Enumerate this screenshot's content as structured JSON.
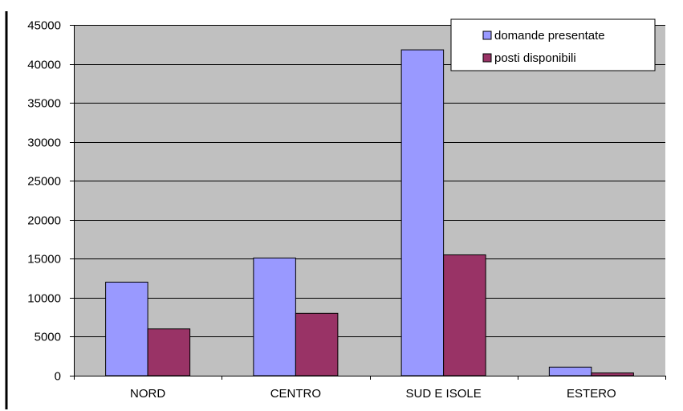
{
  "chart_data": {
    "type": "bar",
    "categories": [
      "NORD",
      "CENTRO",
      "SUD E ISOLE",
      "ESTERO"
    ],
    "series": [
      {
        "name": "domande presentate",
        "values": [
          12000,
          15100,
          41800,
          1100
        ],
        "color": "#9999ff"
      },
      {
        "name": "posti disponibili",
        "values": [
          6000,
          8000,
          15500,
          350
        ],
        "color": "#993366"
      }
    ],
    "ylim": [
      0,
      45000
    ],
    "yticks": [
      0,
      5000,
      10000,
      15000,
      20000,
      25000,
      30000,
      35000,
      40000,
      45000
    ],
    "grid": true,
    "legend_position": "top-right",
    "plot_background": "#c0c0c0"
  }
}
